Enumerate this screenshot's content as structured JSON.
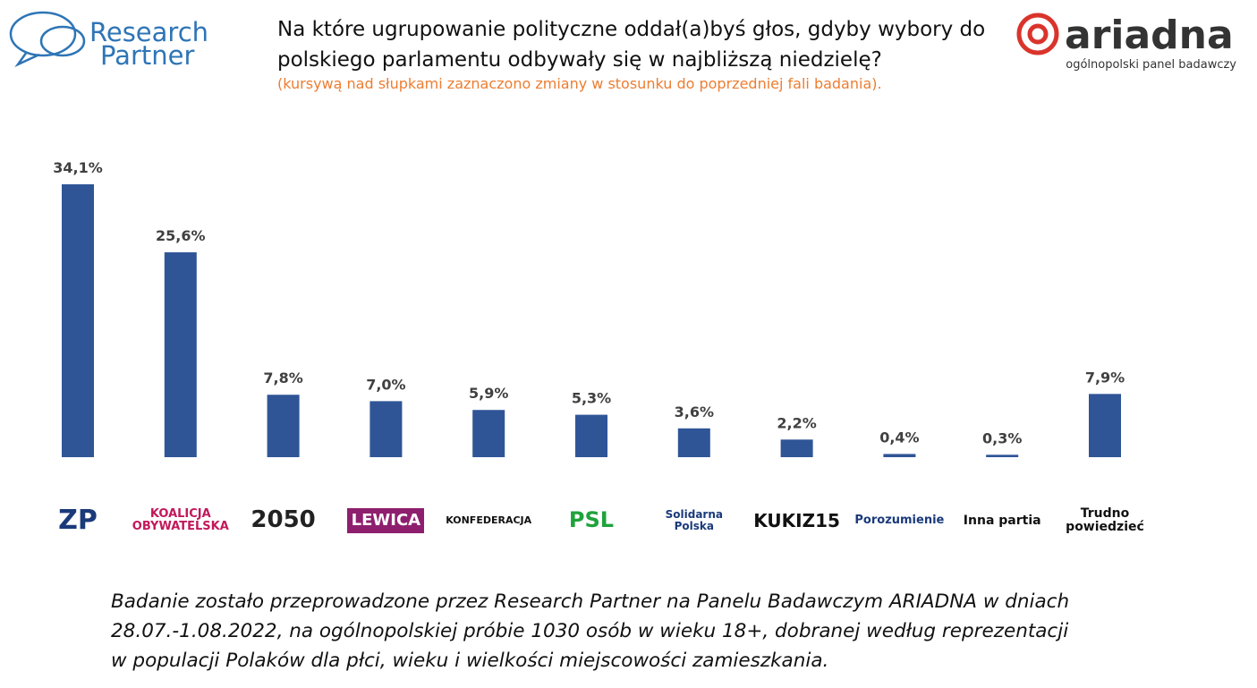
{
  "header": {
    "left_logo": [
      "Research",
      "Partner"
    ],
    "right_logo": "ariadna",
    "right_logo_tagline": "ogólnopolski panel badawczy"
  },
  "chart_data": {
    "type": "bar",
    "title": [
      "Na które ugrupowanie polityczne oddał(a)byś głos, gdyby wybory do",
      "polskiego parlamentu odbywały się w najbliższą niedzielę?"
    ],
    "subtitle": "(kursywą nad słupkami zaznaczono zmiany w stosunku do poprzedniej fali badania).",
    "categories": [
      "ZP",
      "KOALICJA OBYWATELSKA",
      "2050",
      "LEWICA",
      "KONFEDERACJA",
      "PSL",
      "Solidarna Polska",
      "KUKIZ15",
      "Porozumienie",
      "Inna partia",
      "Trudno powiedzieć"
    ],
    "values": [
      34.1,
      25.6,
      7.8,
      7.0,
      5.9,
      5.3,
      3.6,
      2.2,
      0.4,
      0.3,
      7.9
    ],
    "value_labels": [
      "34,1%",
      "25,6%",
      "7,8%",
      "7,0%",
      "5,9%",
      "5,3%",
      "3,6%",
      "2,2%",
      "0,4%",
      "0,3%",
      "7,9%"
    ],
    "color": "#2f5597"
  },
  "footnote": "Badanie zostało przeprowadzone przez Research Partner na Panelu Badawczym ARIADNA w dniach 28.07.-1.08.2022, na ogólnopolskiej próbie 1030 osób w wieku 18+, dobranej według reprezentacji w populacji Polaków dla płci, wieku i wielkości miejscowości zamieszkania."
}
